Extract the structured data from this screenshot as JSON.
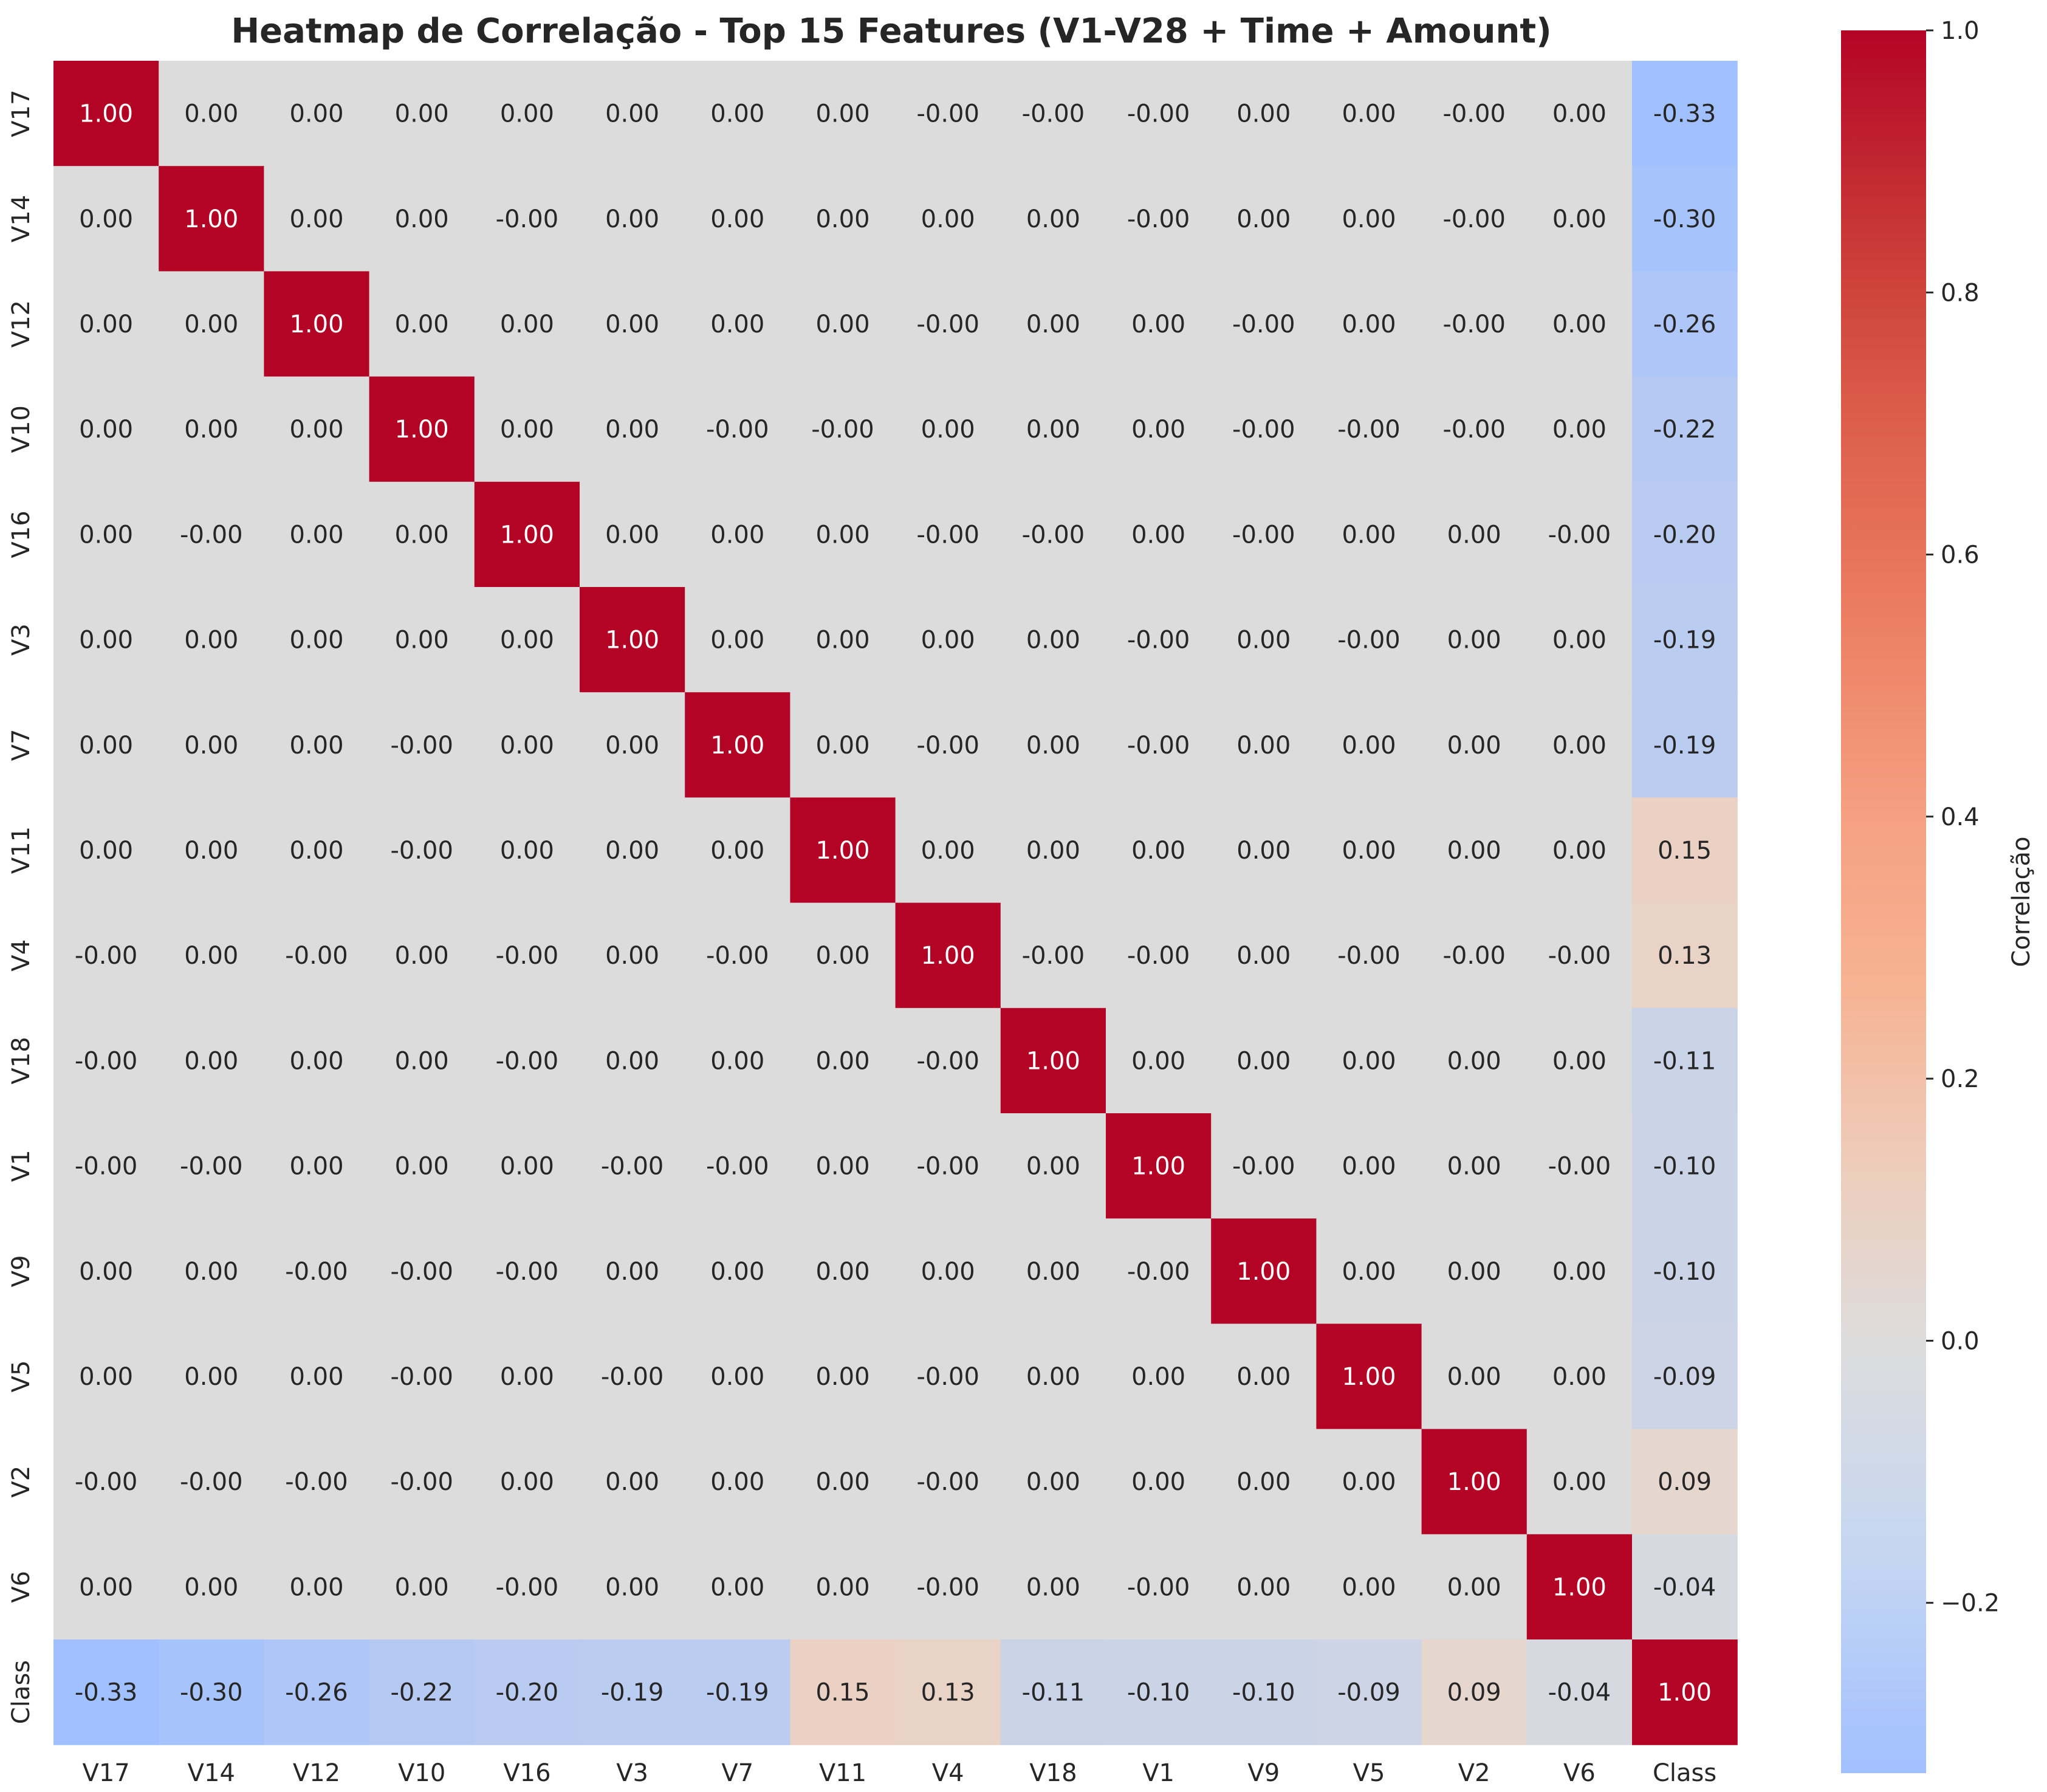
{
  "chart_data": {
    "type": "heatmap",
    "title": "Heatmap de Correlação - Top 15 Features (V1-V28 + Time + Amount)",
    "labels": [
      "V17",
      "V14",
      "V12",
      "V10",
      "V16",
      "V3",
      "V7",
      "V11",
      "V4",
      "V18",
      "V1",
      "V9",
      "V5",
      "V2",
      "V6",
      "Class"
    ],
    "cell_text": [
      [
        "1.00",
        "0.00",
        "0.00",
        "0.00",
        "0.00",
        "0.00",
        "0.00",
        "0.00",
        "-0.00",
        "-0.00",
        "-0.00",
        "0.00",
        "0.00",
        "-0.00",
        "0.00",
        "-0.33"
      ],
      [
        "0.00",
        "1.00",
        "0.00",
        "0.00",
        "-0.00",
        "0.00",
        "0.00",
        "0.00",
        "0.00",
        "0.00",
        "-0.00",
        "0.00",
        "0.00",
        "-0.00",
        "0.00",
        "-0.30"
      ],
      [
        "0.00",
        "0.00",
        "1.00",
        "0.00",
        "0.00",
        "0.00",
        "0.00",
        "0.00",
        "-0.00",
        "0.00",
        "0.00",
        "-0.00",
        "0.00",
        "-0.00",
        "0.00",
        "-0.26"
      ],
      [
        "0.00",
        "0.00",
        "0.00",
        "1.00",
        "0.00",
        "0.00",
        "-0.00",
        "-0.00",
        "0.00",
        "0.00",
        "0.00",
        "-0.00",
        "-0.00",
        "-0.00",
        "0.00",
        "-0.22"
      ],
      [
        "0.00",
        "-0.00",
        "0.00",
        "0.00",
        "1.00",
        "0.00",
        "0.00",
        "0.00",
        "-0.00",
        "-0.00",
        "0.00",
        "-0.00",
        "0.00",
        "0.00",
        "-0.00",
        "-0.20"
      ],
      [
        "0.00",
        "0.00",
        "0.00",
        "0.00",
        "0.00",
        "1.00",
        "0.00",
        "0.00",
        "0.00",
        "0.00",
        "-0.00",
        "0.00",
        "-0.00",
        "0.00",
        "0.00",
        "-0.19"
      ],
      [
        "0.00",
        "0.00",
        "0.00",
        "-0.00",
        "0.00",
        "0.00",
        "1.00",
        "0.00",
        "-0.00",
        "0.00",
        "-0.00",
        "0.00",
        "0.00",
        "0.00",
        "0.00",
        "-0.19"
      ],
      [
        "0.00",
        "0.00",
        "0.00",
        "-0.00",
        "0.00",
        "0.00",
        "0.00",
        "1.00",
        "0.00",
        "0.00",
        "0.00",
        "0.00",
        "0.00",
        "0.00",
        "0.00",
        "0.15"
      ],
      [
        "-0.00",
        "0.00",
        "-0.00",
        "0.00",
        "-0.00",
        "0.00",
        "-0.00",
        "0.00",
        "1.00",
        "-0.00",
        "-0.00",
        "0.00",
        "-0.00",
        "-0.00",
        "-0.00",
        "0.13"
      ],
      [
        "-0.00",
        "0.00",
        "0.00",
        "0.00",
        "-0.00",
        "0.00",
        "0.00",
        "0.00",
        "-0.00",
        "1.00",
        "0.00",
        "0.00",
        "0.00",
        "0.00",
        "0.00",
        "-0.11"
      ],
      [
        "-0.00",
        "-0.00",
        "0.00",
        "0.00",
        "0.00",
        "-0.00",
        "-0.00",
        "0.00",
        "-0.00",
        "0.00",
        "1.00",
        "-0.00",
        "0.00",
        "0.00",
        "-0.00",
        "-0.10"
      ],
      [
        "0.00",
        "0.00",
        "-0.00",
        "-0.00",
        "-0.00",
        "0.00",
        "0.00",
        "0.00",
        "0.00",
        "0.00",
        "-0.00",
        "1.00",
        "0.00",
        "0.00",
        "0.00",
        "-0.10"
      ],
      [
        "0.00",
        "0.00",
        "0.00",
        "-0.00",
        "0.00",
        "-0.00",
        "0.00",
        "0.00",
        "-0.00",
        "0.00",
        "0.00",
        "0.00",
        "1.00",
        "0.00",
        "0.00",
        "-0.09"
      ],
      [
        "-0.00",
        "-0.00",
        "-0.00",
        "-0.00",
        "0.00",
        "0.00",
        "0.00",
        "0.00",
        "-0.00",
        "0.00",
        "0.00",
        "0.00",
        "0.00",
        "1.00",
        "0.00",
        "0.09"
      ],
      [
        "0.00",
        "0.00",
        "0.00",
        "0.00",
        "-0.00",
        "0.00",
        "0.00",
        "0.00",
        "-0.00",
        "0.00",
        "-0.00",
        "0.00",
        "0.00",
        "0.00",
        "1.00",
        "-0.04"
      ],
      [
        "-0.33",
        "-0.30",
        "-0.26",
        "-0.22",
        "-0.20",
        "-0.19",
        "-0.19",
        "0.15",
        "0.13",
        "-0.11",
        "-0.10",
        "-0.10",
        "-0.09",
        "0.09",
        "-0.04",
        "1.00"
      ]
    ],
    "colorbar": {
      "label": "Correlação",
      "range": [
        -0.33,
        1.0
      ],
      "center": 0.0,
      "colormap": "coolwarm",
      "ticks": [
        1.0,
        0.8,
        0.6,
        0.4,
        0.2,
        0.0,
        -0.2
      ],
      "tick_labels": [
        "1.0",
        "0.8",
        "0.6",
        "0.4",
        "0.2",
        "0.0",
        "−0.2"
      ]
    },
    "colors": {
      "strong_positive": "#b40426",
      "neutral": "#dddddd",
      "negative": "#a9c6fd",
      "annotation_dark": "#262626",
      "annotation_light": "#ffffff"
    }
  }
}
